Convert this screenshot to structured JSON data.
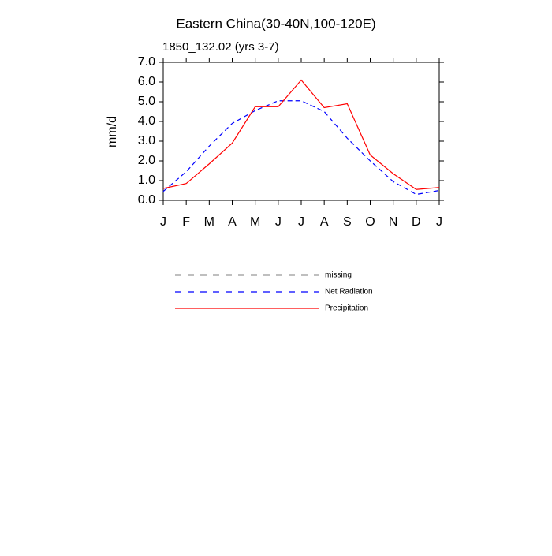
{
  "chart_data": {
    "type": "line",
    "title": "Eastern China(30-40N,100-120E)",
    "subtitle": "1850_132.02 (yrs 3-7)",
    "y_label": "mm/d",
    "categories": [
      "J",
      "F",
      "M",
      "A",
      "M",
      "J",
      "J",
      "A",
      "S",
      "O",
      "N",
      "D",
      "J"
    ],
    "series": [
      {
        "name": "missing",
        "color": "#999999",
        "dash": true,
        "values": [
          null,
          null,
          null,
          null,
          null,
          null,
          null,
          null,
          null,
          null,
          null,
          null,
          null
        ]
      },
      {
        "name": "Net Radiation",
        "color": "#0000ff",
        "dash": true,
        "values": [
          0.45,
          1.45,
          2.75,
          3.9,
          4.55,
          5.05,
          5.05,
          4.5,
          3.15,
          2.0,
          0.95,
          0.3,
          0.5
        ]
      },
      {
        "name": "Precipitation",
        "color": "#ff0000",
        "dash": false,
        "values": [
          0.6,
          0.85,
          1.85,
          2.9,
          4.75,
          4.75,
          6.1,
          4.7,
          4.9,
          2.3,
          1.35,
          0.55,
          0.65
        ]
      }
    ],
    "ylim": [
      0,
      7
    ],
    "yticks": [
      {
        "value": 0,
        "label": "0.0"
      },
      {
        "value": 1,
        "label": "1.0"
      },
      {
        "value": 2,
        "label": "2.0"
      },
      {
        "value": 3,
        "label": "3.0"
      },
      {
        "value": 4,
        "label": "4.0"
      },
      {
        "value": 5,
        "label": "5.0"
      },
      {
        "value": 6,
        "label": "6.0"
      },
      {
        "value": 7,
        "label": "7.0"
      }
    ]
  }
}
